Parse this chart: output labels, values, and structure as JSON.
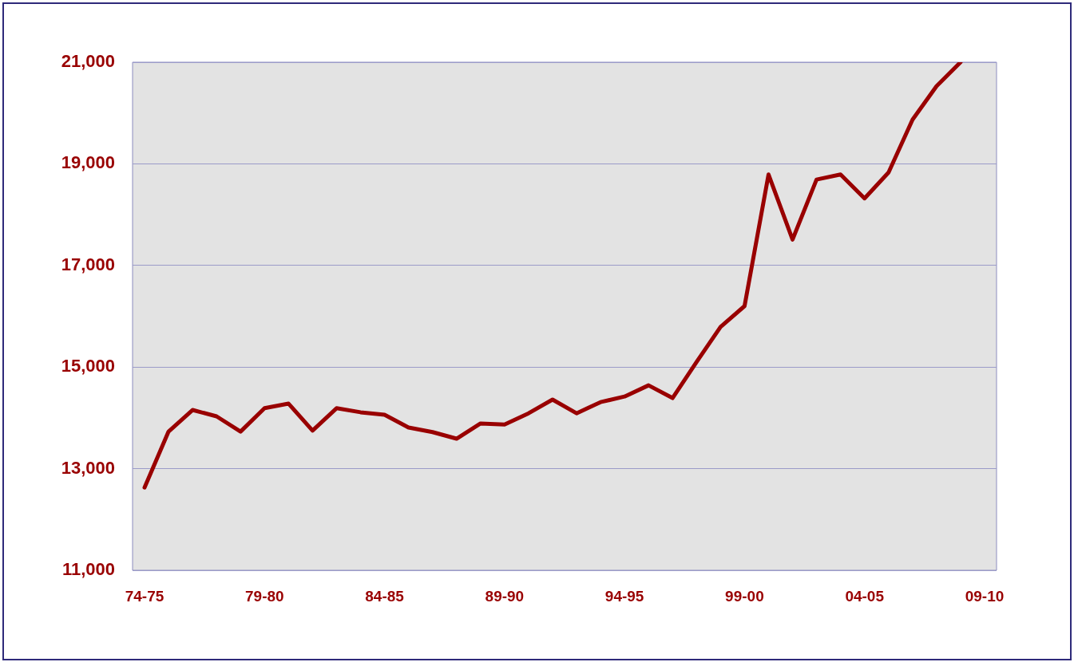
{
  "chart_data": {
    "type": "line",
    "categories": [
      "74-75",
      null,
      null,
      null,
      null,
      "79-80",
      null,
      null,
      null,
      null,
      "84-85",
      null,
      null,
      null,
      null,
      "89-90",
      null,
      null,
      null,
      null,
      "94-95",
      null,
      null,
      null,
      null,
      "99-00",
      null,
      null,
      null,
      null,
      "04-05",
      null,
      null,
      null,
      null,
      "09-10"
    ],
    "series": [
      {
        "color": "#990000",
        "values": [
          12630,
          13730,
          14155,
          14030,
          13730,
          14190,
          14280,
          13750,
          14190,
          14110,
          14060,
          13810,
          13720,
          13590,
          13890,
          13870,
          14090,
          14360,
          14090,
          14310,
          14420,
          14640,
          14390,
          15100,
          15790,
          16200,
          18790,
          17510,
          18690,
          18790,
          18320,
          18830,
          19870,
          20530,
          21000,
          null
        ]
      }
    ],
    "ylim": [
      11000,
      21000
    ],
    "yticks": [
      {
        "value": 11000,
        "label": "11,000"
      },
      {
        "value": 13000,
        "label": "13,000"
      },
      {
        "value": 15000,
        "label": "15,000"
      },
      {
        "value": 17000,
        "label": "17,000"
      },
      {
        "value": 19000,
        "label": "19,000"
      },
      {
        "value": 21000,
        "label": "21,000"
      }
    ],
    "grid": "y",
    "legend": false,
    "marker": "none",
    "line_style": "solid"
  }
}
